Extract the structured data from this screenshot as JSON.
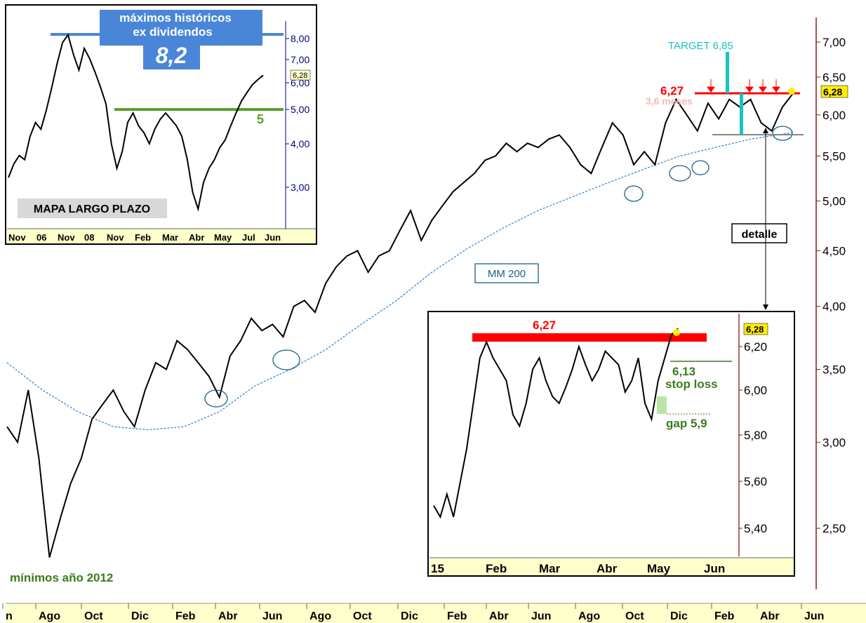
{
  "chart_data": [
    {
      "id": "main",
      "type": "line",
      "description_labels": {
        "ma_label": "MM 200",
        "minimos_label": "mínimos año 2012",
        "detalle_label": "detalle",
        "target_label": "TARGET 6,85",
        "resistance_label": "6,27",
        "months_label": "3,6 meses",
        "last_price_tag": "6,28"
      },
      "y_ticks": [
        "7,00",
        "6,50",
        "6,00",
        "5,50",
        "5,00",
        "4,50",
        "4,00",
        "3,50",
        "3,00",
        "2,50"
      ],
      "y_tick_values": [
        7.0,
        6.5,
        6.0,
        5.5,
        5.0,
        4.5,
        4.0,
        3.5,
        3.0,
        2.5
      ],
      "ylim": [
        2.25,
        7.3
      ],
      "y_scale": "log",
      "x_ticks": [
        "n",
        "Ago",
        "Oct",
        "Dic",
        "Feb",
        "Abr",
        "Jun",
        "Ago",
        "Oct",
        "Dic",
        "Feb",
        "Abr",
        "Jun",
        "Ago",
        "Oct",
        "Dic",
        "Feb",
        "Abr",
        "Jun"
      ],
      "price_series": [
        [
          0,
          3.1
        ],
        [
          3,
          3.0
        ],
        [
          6,
          3.35
        ],
        [
          9,
          2.9
        ],
        [
          12,
          2.35
        ],
        [
          15,
          2.55
        ],
        [
          18,
          2.75
        ],
        [
          21,
          2.9
        ],
        [
          24,
          3.15
        ],
        [
          27,
          3.25
        ],
        [
          30,
          3.35
        ],
        [
          33,
          3.2
        ],
        [
          36,
          3.1
        ],
        [
          39,
          3.35
        ],
        [
          42,
          3.55
        ],
        [
          45,
          3.5
        ],
        [
          48,
          3.72
        ],
        [
          51,
          3.65
        ],
        [
          54,
          3.55
        ],
        [
          57,
          3.45
        ],
        [
          60,
          3.3
        ],
        [
          63,
          3.6
        ],
        [
          66,
          3.72
        ],
        [
          69,
          3.9
        ],
        [
          72,
          3.8
        ],
        [
          75,
          3.85
        ],
        [
          78,
          3.75
        ],
        [
          81,
          4.0
        ],
        [
          84,
          4.05
        ],
        [
          87,
          3.95
        ],
        [
          90,
          4.2
        ],
        [
          93,
          4.35
        ],
        [
          96,
          4.45
        ],
        [
          99,
          4.5
        ],
        [
          102,
          4.3
        ],
        [
          105,
          4.45
        ],
        [
          108,
          4.5
        ],
        [
          111,
          4.7
        ],
        [
          114,
          4.9
        ],
        [
          117,
          4.6
        ],
        [
          120,
          4.8
        ],
        [
          123,
          4.95
        ],
        [
          126,
          5.1
        ],
        [
          129,
          5.2
        ],
        [
          132,
          5.3
        ],
        [
          135,
          5.45
        ],
        [
          138,
          5.5
        ],
        [
          141,
          5.65
        ],
        [
          144,
          5.55
        ],
        [
          147,
          5.65
        ],
        [
          150,
          5.6
        ],
        [
          153,
          5.7
        ],
        [
          156,
          5.75
        ],
        [
          159,
          5.6
        ],
        [
          162,
          5.4
        ],
        [
          165,
          5.3
        ],
        [
          168,
          5.6
        ],
        [
          171,
          5.9
        ],
        [
          174,
          5.75
        ],
        [
          177,
          5.4
        ],
        [
          180,
          5.55
        ],
        [
          183,
          5.4
        ],
        [
          186,
          5.9
        ],
        [
          189,
          6.2
        ],
        [
          192,
          6.0
        ],
        [
          195,
          5.8
        ],
        [
          198,
          6.15
        ],
        [
          201,
          5.95
        ],
        [
          204,
          6.2
        ],
        [
          207,
          6.1
        ],
        [
          210,
          6.2
        ],
        [
          213,
          5.9
        ],
        [
          216,
          5.8
        ],
        [
          219,
          6.1
        ],
        [
          222,
          6.28
        ]
      ],
      "ma_series": [
        [
          0,
          3.55
        ],
        [
          10,
          3.35
        ],
        [
          20,
          3.2
        ],
        [
          30,
          3.1
        ],
        [
          40,
          3.08
        ],
        [
          50,
          3.1
        ],
        [
          60,
          3.2
        ],
        [
          70,
          3.38
        ],
        [
          80,
          3.5
        ],
        [
          90,
          3.65
        ],
        [
          100,
          3.85
        ],
        [
          110,
          4.05
        ],
        [
          120,
          4.3
        ],
        [
          130,
          4.52
        ],
        [
          140,
          4.72
        ],
        [
          150,
          4.9
        ],
        [
          160,
          5.05
        ],
        [
          170,
          5.2
        ],
        [
          180,
          5.35
        ],
        [
          190,
          5.5
        ],
        [
          200,
          5.6
        ],
        [
          210,
          5.7
        ],
        [
          222,
          5.78
        ]
      ]
    },
    {
      "id": "long_term_inset",
      "type": "line",
      "title_lines": [
        "máximos históricos",
        "ex dividendos"
      ],
      "big_value": "8,2",
      "support_label": "5",
      "map_label": "MAPA LARGO PLAZO",
      "last_price_tag": "6,28",
      "y_ticks": [
        "8,00",
        "7,00",
        "6,00",
        "5,00",
        "4,00",
        "3,00"
      ],
      "x_ticks": [
        "Nov",
        "06",
        "Nov",
        "08",
        "Nov",
        "Feb",
        "Mar",
        "Abr",
        "May",
        "Jul",
        "Jun"
      ],
      "series": [
        [
          0,
          3.2
        ],
        [
          4,
          3.5
        ],
        [
          8,
          3.7
        ],
        [
          12,
          3.6
        ],
        [
          16,
          4.2
        ],
        [
          20,
          4.6
        ],
        [
          24,
          4.4
        ],
        [
          28,
          5.0
        ],
        [
          32,
          5.8
        ],
        [
          36,
          6.8
        ],
        [
          40,
          7.8
        ],
        [
          44,
          8.2
        ],
        [
          48,
          7.2
        ],
        [
          52,
          6.5
        ],
        [
          56,
          7.5
        ],
        [
          60,
          7.0
        ],
        [
          64,
          6.4
        ],
        [
          68,
          5.8
        ],
        [
          72,
          5.2
        ],
        [
          76,
          4.0
        ],
        [
          80,
          3.4
        ],
        [
          84,
          3.8
        ],
        [
          88,
          4.6
        ],
        [
          92,
          4.9
        ],
        [
          96,
          4.5
        ],
        [
          100,
          4.3
        ],
        [
          104,
          4.0
        ],
        [
          108,
          4.4
        ],
        [
          112,
          4.7
        ],
        [
          116,
          4.9
        ],
        [
          120,
          4.7
        ],
        [
          124,
          4.5
        ],
        [
          128,
          4.2
        ],
        [
          132,
          3.6
        ],
        [
          136,
          2.9
        ],
        [
          140,
          2.6
        ],
        [
          144,
          3.1
        ],
        [
          148,
          3.4
        ],
        [
          152,
          3.6
        ],
        [
          156,
          3.9
        ],
        [
          160,
          4.1
        ],
        [
          164,
          4.5
        ],
        [
          168,
          4.9
        ],
        [
          172,
          5.3
        ],
        [
          176,
          5.6
        ],
        [
          180,
          5.9
        ],
        [
          184,
          6.1
        ],
        [
          188,
          6.28
        ]
      ]
    },
    {
      "id": "detail_inset",
      "type": "line",
      "resistance_label": "6,27",
      "stop_value": "6,13",
      "stop_label": "stop loss",
      "gap_label": "gap 5,9",
      "last_price_tag": "6,28",
      "y_ticks": [
        "6,20",
        "6,00",
        "5,80",
        "5,60",
        "5,40"
      ],
      "x_ticks": [
        "15",
        "Feb",
        "Mar",
        "Abr",
        "May",
        "Jun"
      ],
      "series": [
        [
          0,
          5.5
        ],
        [
          3,
          5.45
        ],
        [
          6,
          5.55
        ],
        [
          9,
          5.45
        ],
        [
          12,
          5.6
        ],
        [
          15,
          5.75
        ],
        [
          18,
          5.95
        ],
        [
          21,
          6.15
        ],
        [
          24,
          6.22
        ],
        [
          27,
          6.15
        ],
        [
          30,
          6.1
        ],
        [
          33,
          6.05
        ],
        [
          36,
          5.9
        ],
        [
          39,
          5.85
        ],
        [
          42,
          5.95
        ],
        [
          45,
          6.1
        ],
        [
          48,
          6.15
        ],
        [
          51,
          6.05
        ],
        [
          54,
          5.98
        ],
        [
          57,
          5.95
        ],
        [
          60,
          6.02
        ],
        [
          63,
          6.1
        ],
        [
          66,
          6.2
        ],
        [
          69,
          6.12
        ],
        [
          72,
          6.05
        ],
        [
          75,
          6.1
        ],
        [
          78,
          6.18
        ],
        [
          81,
          6.15
        ],
        [
          84,
          6.12
        ],
        [
          87,
          6.0
        ],
        [
          90,
          6.05
        ],
        [
          93,
          6.15
        ],
        [
          96,
          5.95
        ],
        [
          99,
          5.88
        ],
        [
          102,
          6.05
        ],
        [
          105,
          6.15
        ],
        [
          108,
          6.25
        ],
        [
          111,
          6.28
        ]
      ]
    }
  ],
  "bottom_axis": {
    "labels": [
      "n",
      "Ago",
      "Oct",
      "Dic",
      "Feb",
      "Abr",
      "Jun",
      "Ago",
      "Oct",
      "Dic",
      "Feb",
      "Abr",
      "Jun",
      "Ago",
      "Oct",
      "Dic",
      "Feb",
      "Abr",
      "Jun"
    ]
  },
  "colors": {
    "price": "#000000",
    "price_down": "#8b0000",
    "ma": "#2a7fd4",
    "resistance": "#ff0000",
    "target": "#17c4c4",
    "support_green": "#5aa02c",
    "title_box": "#4a86d8",
    "circle": "#1a5f8a",
    "axis_bg": "#ffffcc"
  }
}
